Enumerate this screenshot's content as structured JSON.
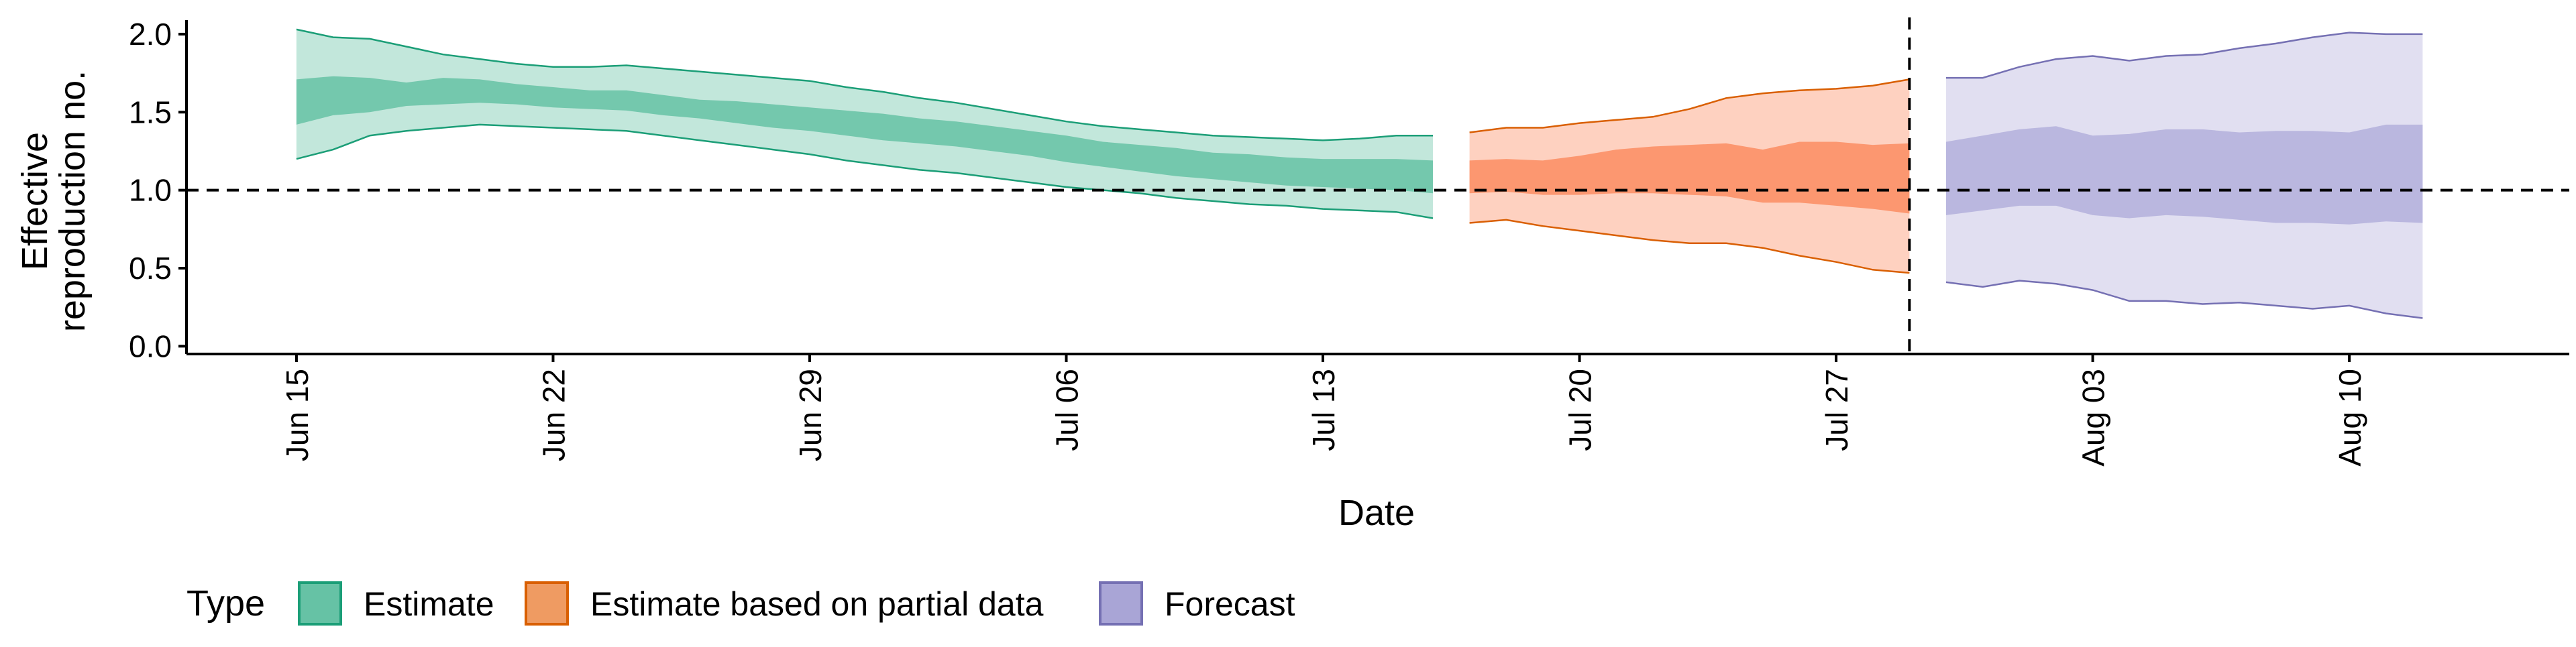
{
  "chart_data": {
    "type": "area",
    "title": "",
    "xlabel": "Date",
    "ylabel_line1": "Effective",
    "ylabel_line2": "reproduction no.",
    "ylim": [
      -0.05,
      2.15
    ],
    "xlim": [
      "2020-06-12",
      "2020-08-16"
    ],
    "y_ticks": [
      0.0,
      0.5,
      1.0,
      1.5,
      2.0
    ],
    "y_tick_labels": [
      "0.0",
      "0.5",
      "1.0",
      "1.5",
      "2.0"
    ],
    "x_ticks": [
      "2020-06-15",
      "2020-06-22",
      "2020-06-29",
      "2020-07-06",
      "2020-07-13",
      "2020-07-20",
      "2020-07-27",
      "2020-08-03",
      "2020-08-10"
    ],
    "x_tick_labels": [
      "Jun 15",
      "Jun 22",
      "Jun 29",
      "Jul 06",
      "Jul 13",
      "Jul 20",
      "Jul 27",
      "Aug 03",
      "Aug 10"
    ],
    "reference_hline": 1.0,
    "reference_vline": "2020-07-29",
    "grid": false,
    "legend": {
      "title": "Type",
      "position": "bottom",
      "entries": [
        "Estimate",
        "Estimate based on partial data",
        "Forecast"
      ]
    },
    "series": [
      {
        "name": "Estimate",
        "fill": "#66C2A5",
        "stroke": "#1B9E77",
        "dates": [
          "2020-06-15",
          "2020-06-16",
          "2020-06-17",
          "2020-06-18",
          "2020-06-19",
          "2020-06-20",
          "2020-06-21",
          "2020-06-22",
          "2020-06-23",
          "2020-06-24",
          "2020-06-25",
          "2020-06-26",
          "2020-06-27",
          "2020-06-28",
          "2020-06-29",
          "2020-06-30",
          "2020-07-01",
          "2020-07-02",
          "2020-07-03",
          "2020-07-04",
          "2020-07-05",
          "2020-07-06",
          "2020-07-07",
          "2020-07-08",
          "2020-07-09",
          "2020-07-10",
          "2020-07-11",
          "2020-07-12",
          "2020-07-13",
          "2020-07-14",
          "2020-07-15",
          "2020-07-16"
        ],
        "lower_90": [
          1.2,
          1.26,
          1.35,
          1.38,
          1.4,
          1.42,
          1.41,
          1.4,
          1.39,
          1.38,
          1.35,
          1.32,
          1.29,
          1.26,
          1.23,
          1.19,
          1.16,
          1.13,
          1.11,
          1.08,
          1.05,
          1.02,
          1.0,
          0.98,
          0.95,
          0.93,
          0.91,
          0.9,
          0.88,
          0.87,
          0.86,
          0.82
        ],
        "upper_90": [
          2.03,
          1.98,
          1.97,
          1.92,
          1.87,
          1.84,
          1.81,
          1.79,
          1.79,
          1.8,
          1.78,
          1.76,
          1.74,
          1.72,
          1.7,
          1.66,
          1.63,
          1.59,
          1.56,
          1.52,
          1.48,
          1.44,
          1.41,
          1.39,
          1.37,
          1.35,
          1.34,
          1.33,
          1.32,
          1.33,
          1.35,
          1.35
        ],
        "lower_50": [
          1.42,
          1.48,
          1.5,
          1.54,
          1.55,
          1.56,
          1.55,
          1.53,
          1.52,
          1.51,
          1.48,
          1.46,
          1.43,
          1.4,
          1.38,
          1.35,
          1.32,
          1.3,
          1.28,
          1.25,
          1.22,
          1.18,
          1.15,
          1.12,
          1.09,
          1.07,
          1.05,
          1.03,
          1.02,
          1.01,
          1.0,
          0.98
        ],
        "upper_50": [
          1.71,
          1.73,
          1.72,
          1.69,
          1.72,
          1.71,
          1.68,
          1.66,
          1.64,
          1.64,
          1.61,
          1.58,
          1.57,
          1.55,
          1.53,
          1.51,
          1.49,
          1.46,
          1.44,
          1.41,
          1.38,
          1.35,
          1.31,
          1.29,
          1.27,
          1.24,
          1.23,
          1.21,
          1.2,
          1.2,
          1.2,
          1.19
        ]
      },
      {
        "name": "Estimate based on partial data",
        "fill": "#FC8D62",
        "stroke": "#D95F02",
        "dates": [
          "2020-07-17",
          "2020-07-18",
          "2020-07-19",
          "2020-07-20",
          "2020-07-21",
          "2020-07-22",
          "2020-07-23",
          "2020-07-24",
          "2020-07-25",
          "2020-07-26",
          "2020-07-27",
          "2020-07-28",
          "2020-07-29"
        ],
        "lower_90": [
          0.79,
          0.81,
          0.77,
          0.74,
          0.71,
          0.68,
          0.66,
          0.66,
          0.63,
          0.58,
          0.54,
          0.49,
          0.47
        ],
        "upper_90": [
          1.37,
          1.4,
          1.4,
          1.43,
          1.45,
          1.47,
          1.52,
          1.59,
          1.62,
          1.64,
          1.65,
          1.67,
          1.71
        ],
        "lower_50": [
          0.98,
          0.99,
          0.97,
          0.97,
          0.98,
          0.98,
          0.97,
          0.96,
          0.92,
          0.92,
          0.9,
          0.88,
          0.85
        ],
        "upper_50": [
          1.19,
          1.2,
          1.19,
          1.22,
          1.26,
          1.28,
          1.29,
          1.3,
          1.26,
          1.31,
          1.31,
          1.29,
          1.3
        ]
      },
      {
        "name": "Forecast",
        "fill": "#B3B0DC",
        "stroke": "#7570B3",
        "dates": [
          "2020-07-30",
          "2020-07-31",
          "2020-08-01",
          "2020-08-02",
          "2020-08-03",
          "2020-08-04",
          "2020-08-05",
          "2020-08-06",
          "2020-08-07",
          "2020-08-08",
          "2020-08-09",
          "2020-08-10",
          "2020-08-11",
          "2020-08-12"
        ],
        "lower_90": [
          0.41,
          0.38,
          0.42,
          0.4,
          0.36,
          0.29,
          0.29,
          0.27,
          0.28,
          0.26,
          0.24,
          0.26,
          0.21,
          0.18
        ],
        "upper_90": [
          1.72,
          1.72,
          1.79,
          1.84,
          1.86,
          1.83,
          1.86,
          1.87,
          1.91,
          1.94,
          1.98,
          2.01,
          2.0,
          2.0
        ],
        "lower_50": [
          0.84,
          0.87,
          0.9,
          0.9,
          0.84,
          0.82,
          0.84,
          0.83,
          0.81,
          0.79,
          0.79,
          0.78,
          0.8,
          0.79
        ],
        "upper_50": [
          1.31,
          1.35,
          1.39,
          1.41,
          1.35,
          1.36,
          1.39,
          1.39,
          1.37,
          1.38,
          1.38,
          1.37,
          1.42,
          1.42
        ]
      }
    ]
  }
}
